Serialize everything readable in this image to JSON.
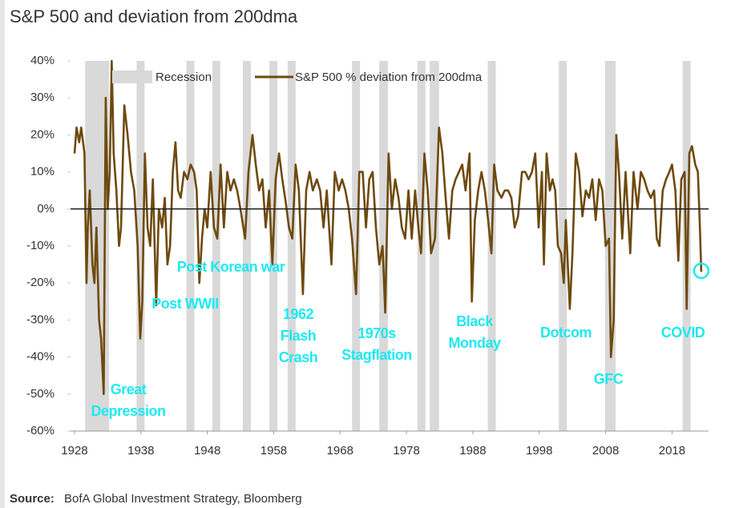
{
  "chart_data": {
    "type": "line",
    "title": "S&P 500 and deviation from 200dma",
    "source_label": "Source:",
    "source": "BofA Global Investment Strategy, Bloomberg",
    "xlim": [
      1927.4,
      2023.5
    ],
    "ylim": [
      -60,
      40
    ],
    "xticks": [
      1928,
      1938,
      1948,
      1958,
      1968,
      1978,
      1988,
      1998,
      2008,
      2018
    ],
    "yticks": [
      {
        "value": 40,
        "label": "40%"
      },
      {
        "value": 30,
        "label": "30%"
      },
      {
        "value": 20,
        "label": "20%"
      },
      {
        "value": 10,
        "label": "10%"
      },
      {
        "value": 0,
        "label": "0%"
      },
      {
        "value": -10,
        "label": "-10%"
      },
      {
        "value": -20,
        "label": "-20%"
      },
      {
        "value": -30,
        "label": "-30%"
      },
      {
        "value": -40,
        "label": "-40%"
      },
      {
        "value": -50,
        "label": "-50%"
      },
      {
        "value": -60,
        "label": "-60%"
      }
    ],
    "legend": "top",
    "recession": {
      "name": "Recession",
      "color": "#d9d9d9",
      "starts": [
        1929.6,
        1937.4,
        1945.1,
        1948.9,
        1953.5,
        1957.6,
        1960.3,
        1969.9,
        1973.9,
        1980.0,
        1981.5,
        1990.5,
        2001.2,
        2007.9,
        2020.1
      ],
      "ends": [
        1933.2,
        1938.5,
        1945.8,
        1949.8,
        1954.4,
        1958.3,
        1961.1,
        1970.9,
        1975.2,
        1980.5,
        1982.9,
        1991.2,
        2001.9,
        2009.5,
        2020.3
      ]
    },
    "x": [
      1928.0,
      1928.3,
      1928.7,
      1929.0,
      1929.5,
      1929.8,
      1930.0,
      1930.3,
      1930.7,
      1931.0,
      1931.3,
      1931.7,
      1932.0,
      1932.4,
      1932.7,
      1933.0,
      1933.3,
      1933.6,
      1933.9,
      1934.3,
      1934.7,
      1935.0,
      1935.5,
      1936.0,
      1936.5,
      1937.0,
      1937.5,
      1937.9,
      1938.2,
      1938.6,
      1939.0,
      1939.4,
      1939.8,
      1940.3,
      1940.7,
      1941.2,
      1941.6,
      1942.0,
      1942.4,
      1942.8,
      1943.2,
      1943.6,
      1944.0,
      1944.5,
      1945.0,
      1945.5,
      1946.0,
      1946.4,
      1946.8,
      1947.2,
      1947.6,
      1948.0,
      1948.5,
      1949.0,
      1949.5,
      1950.0,
      1950.5,
      1951.0,
      1951.5,
      1952.0,
      1952.5,
      1953.0,
      1953.7,
      1954.2,
      1954.8,
      1955.3,
      1955.8,
      1956.3,
      1956.8,
      1957.3,
      1957.8,
      1958.3,
      1958.8,
      1959.3,
      1959.8,
      1960.3,
      1960.8,
      1961.3,
      1961.8,
      1962.4,
      1962.9,
      1963.4,
      1963.9,
      1964.5,
      1965.0,
      1965.5,
      1966.0,
      1966.7,
      1967.2,
      1967.8,
      1968.3,
      1968.8,
      1969.3,
      1969.8,
      1970.4,
      1970.9,
      1971.4,
      1971.9,
      1972.4,
      1972.9,
      1973.4,
      1973.9,
      1974.4,
      1974.8,
      1975.3,
      1975.8,
      1976.3,
      1976.8,
      1977.3,
      1977.8,
      1978.3,
      1978.8,
      1979.3,
      1979.8,
      1980.2,
      1980.7,
      1981.2,
      1981.7,
      1982.3,
      1982.9,
      1983.4,
      1983.9,
      1984.4,
      1984.9,
      1985.4,
      1985.9,
      1986.4,
      1986.9,
      1987.5,
      1987.85,
      1988.3,
      1988.8,
      1989.3,
      1989.8,
      1990.3,
      1990.8,
      1991.2,
      1991.7,
      1992.3,
      1992.8,
      1993.3,
      1993.8,
      1994.3,
      1994.8,
      1995.4,
      1995.9,
      1996.4,
      1996.9,
      1997.4,
      1997.9,
      1998.4,
      1998.7,
      1999.1,
      1999.6,
      2000.0,
      2000.4,
      2000.8,
      2001.3,
      2001.7,
      2002.0,
      2002.6,
      2003.0,
      2003.5,
      2004.0,
      2004.5,
      2005.0,
      2005.5,
      2006.0,
      2006.5,
      2007.0,
      2007.5,
      2008.0,
      2008.5,
      2008.8,
      2009.2,
      2009.6,
      2010.0,
      2010.5,
      2011.0,
      2011.7,
      2012.2,
      2012.8,
      2013.3,
      2013.8,
      2014.3,
      2014.8,
      2015.3,
      2015.7,
      2016.1,
      2016.6,
      2017.1,
      2017.6,
      2018.0,
      2018.5,
      2018.95,
      2019.4,
      2019.9,
      2020.2,
      2020.6,
      2021.0,
      2021.5,
      2021.9,
      2022.2,
      2022.4
    ],
    "series": [
      {
        "name": "S&P 500 % deviation from 200dma",
        "color": "#6e4a0e",
        "values": [
          15,
          22,
          18,
          22,
          15,
          -20,
          -5,
          5,
          -15,
          -20,
          -5,
          -30,
          -35,
          -50,
          30,
          0,
          10,
          40,
          15,
          5,
          -10,
          -5,
          28,
          20,
          10,
          5,
          -10,
          -35,
          -25,
          15,
          -5,
          -10,
          8,
          -26,
          0,
          -5,
          3,
          -15,
          -10,
          10,
          18,
          5,
          3,
          10,
          8,
          12,
          10,
          5,
          -20,
          -8,
          0,
          -5,
          10,
          -5,
          -8,
          12,
          -5,
          10,
          5,
          8,
          5,
          0,
          -8,
          10,
          20,
          12,
          5,
          8,
          -5,
          5,
          -15,
          8,
          15,
          8,
          2,
          -5,
          -8,
          12,
          5,
          -23,
          5,
          10,
          5,
          8,
          5,
          -5,
          5,
          -15,
          10,
          5,
          8,
          5,
          0,
          -8,
          -23,
          10,
          10,
          -5,
          8,
          10,
          -5,
          -15,
          -10,
          -28,
          15,
          0,
          8,
          3,
          -5,
          -8,
          5,
          -8,
          5,
          -5,
          -12,
          15,
          5,
          -12,
          -8,
          22,
          15,
          3,
          -8,
          5,
          8,
          10,
          12,
          5,
          15,
          -25,
          -3,
          5,
          10,
          5,
          -3,
          -12,
          12,
          5,
          3,
          5,
          5,
          3,
          -5,
          -2,
          10,
          10,
          8,
          10,
          15,
          -5,
          10,
          -15,
          15,
          5,
          8,
          5,
          -10,
          -12,
          -20,
          -3,
          -27,
          -12,
          15,
          10,
          -2,
          5,
          3,
          8,
          -3,
          8,
          5,
          -10,
          -8,
          -40,
          -30,
          20,
          10,
          -8,
          10,
          -12,
          10,
          0,
          10,
          8,
          5,
          3,
          5,
          -8,
          -10,
          5,
          8,
          10,
          12,
          5,
          -14,
          8,
          10,
          -27,
          15,
          17,
          12,
          10,
          -5,
          -17
        ]
      }
    ],
    "annotations": [
      [
        "Great",
        "Depression"
      ],
      [
        "Post WWII"
      ],
      [
        "Post Korean war"
      ],
      [
        "1962",
        "Flash",
        "Crash"
      ],
      [
        "1970s",
        "Stagflation"
      ],
      [
        "Black",
        "Monday"
      ],
      [
        "Dotcom"
      ],
      [
        "GFC"
      ],
      [
        "COVID"
      ]
    ],
    "annotation_color": "#1de9f2"
  }
}
